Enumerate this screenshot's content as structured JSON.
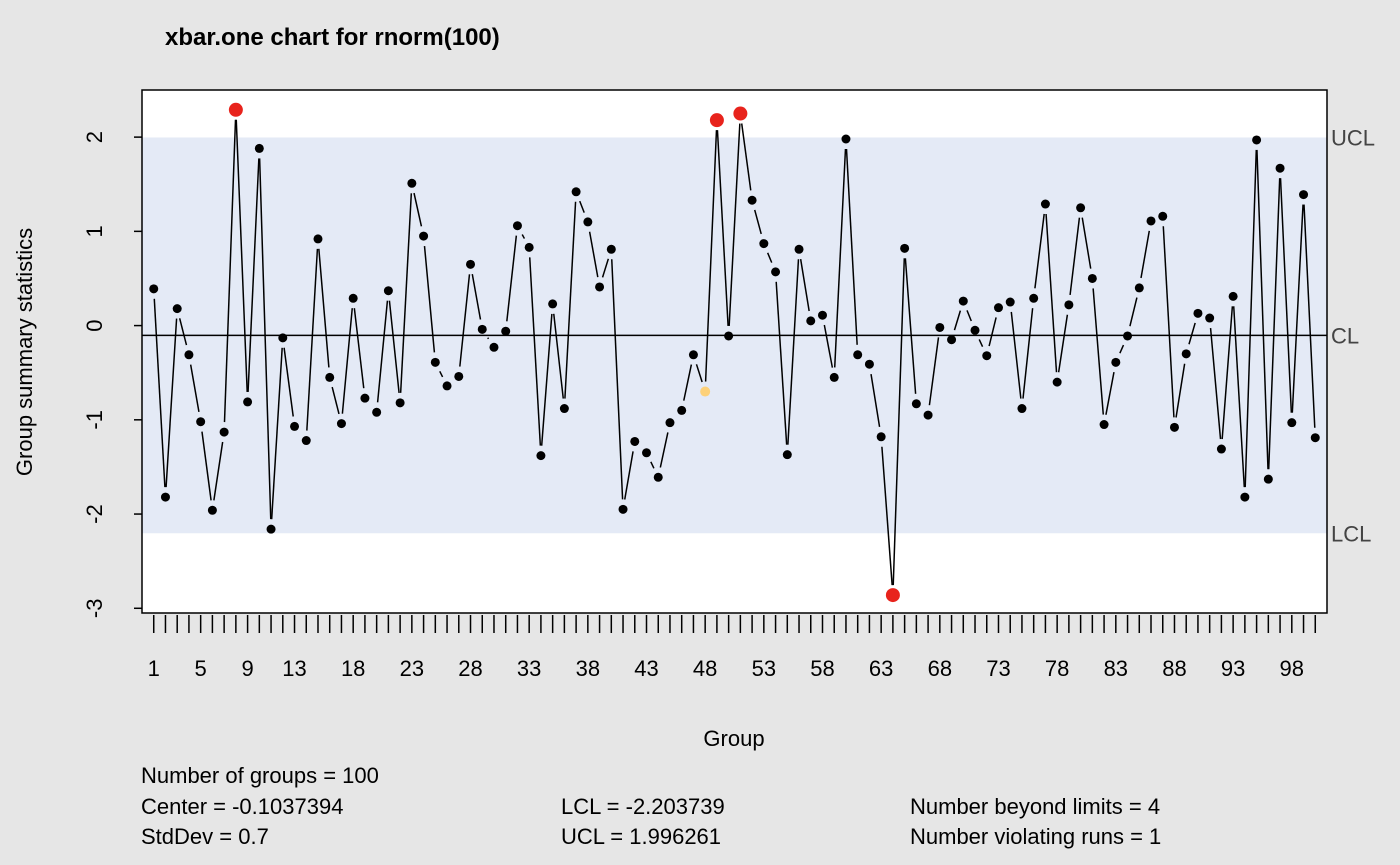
{
  "chart_data": {
    "type": "line",
    "title": "xbar.one chart for rnorm(100)",
    "xlabel": "Group",
    "ylabel": "Group summary statistics",
    "xlim": [
      0,
      101
    ],
    "ylim": [
      -3.05,
      2.5
    ],
    "y_ticks": [
      -3,
      -2,
      -1,
      0,
      1,
      2
    ],
    "x_tick_labels": [
      1,
      5,
      9,
      13,
      18,
      23,
      28,
      33,
      38,
      43,
      48,
      53,
      58,
      63,
      68,
      73,
      78,
      83,
      88,
      93,
      98
    ],
    "center_line": -0.1037394,
    "ucl": 1.996261,
    "lcl": -2.203739,
    "limit_labels": {
      "ucl": "UCL",
      "cl": "CL",
      "lcl": "LCL"
    },
    "x": [
      1,
      2,
      3,
      4,
      5,
      6,
      7,
      8,
      9,
      10,
      11,
      12,
      13,
      14,
      15,
      16,
      17,
      18,
      19,
      20,
      21,
      22,
      23,
      24,
      25,
      26,
      27,
      28,
      29,
      30,
      31,
      32,
      33,
      34,
      35,
      36,
      37,
      38,
      39,
      40,
      41,
      42,
      43,
      44,
      45,
      46,
      47,
      48,
      49,
      50,
      51,
      52,
      53,
      54,
      55,
      56,
      57,
      58,
      59,
      60,
      61,
      62,
      63,
      64,
      65,
      66,
      67,
      68,
      69,
      70,
      71,
      72,
      73,
      74,
      75,
      76,
      77,
      78,
      79,
      80,
      81,
      82,
      83,
      84,
      85,
      86,
      87,
      88,
      89,
      90,
      91,
      92,
      93,
      94,
      95,
      96,
      97,
      98,
      99,
      100
    ],
    "values": [
      0.39,
      -1.82,
      0.18,
      -0.31,
      -1.02,
      -1.96,
      -1.13,
      2.29,
      -0.81,
      1.88,
      -2.16,
      -0.13,
      -1.07,
      -1.22,
      0.92,
      -0.55,
      -1.04,
      0.29,
      -0.77,
      -0.92,
      0.37,
      -0.82,
      1.51,
      0.95,
      -0.39,
      -0.64,
      -0.54,
      0.65,
      -0.04,
      -0.23,
      -0.06,
      1.06,
      0.83,
      -1.38,
      0.23,
      -0.88,
      1.42,
      1.1,
      0.41,
      0.81,
      -1.95,
      -1.23,
      -1.35,
      -1.61,
      -1.03,
      -0.9,
      -0.31,
      -0.7,
      2.18,
      -0.11,
      2.25,
      1.33,
      0.87,
      0.57,
      -1.37,
      0.81,
      0.05,
      0.11,
      -0.55,
      1.98,
      -0.31,
      -0.41,
      -1.18,
      -2.86,
      0.82,
      -0.83,
      -0.95,
      -0.02,
      -0.15,
      0.26,
      -0.05,
      -0.32,
      0.19,
      0.25,
      -0.88,
      0.29,
      1.29,
      -0.6,
      0.22,
      1.25,
      0.5,
      -1.05,
      -0.39,
      -0.11,
      0.4,
      1.11,
      1.16,
      -1.08,
      -0.3,
      0.13,
      0.08,
      -1.31,
      0.31,
      -1.82,
      1.97,
      -1.63,
      1.67,
      -1.03,
      1.39,
      -1.19
    ],
    "beyond_limits": [
      8,
      49,
      51,
      64
    ],
    "violating_runs": [
      48
    ],
    "colors": {
      "background": "#e6e6e6",
      "plot": "#ffffff",
      "band": "#e4eaf6",
      "line": "#000000",
      "point": "#000000",
      "beyond": "#e8231c",
      "violating": "#fdd179"
    },
    "grid": false,
    "legend": "none"
  },
  "stats": {
    "groups": "Number of groups = 100",
    "center": "Center = -0.1037394",
    "stddev": "StdDev = 0.7",
    "lcl": "LCL = -2.203739",
    "ucl": "UCL = 1.996261",
    "beyond": "Number beyond limits = 4",
    "violating": "Number violating runs = 1"
  }
}
